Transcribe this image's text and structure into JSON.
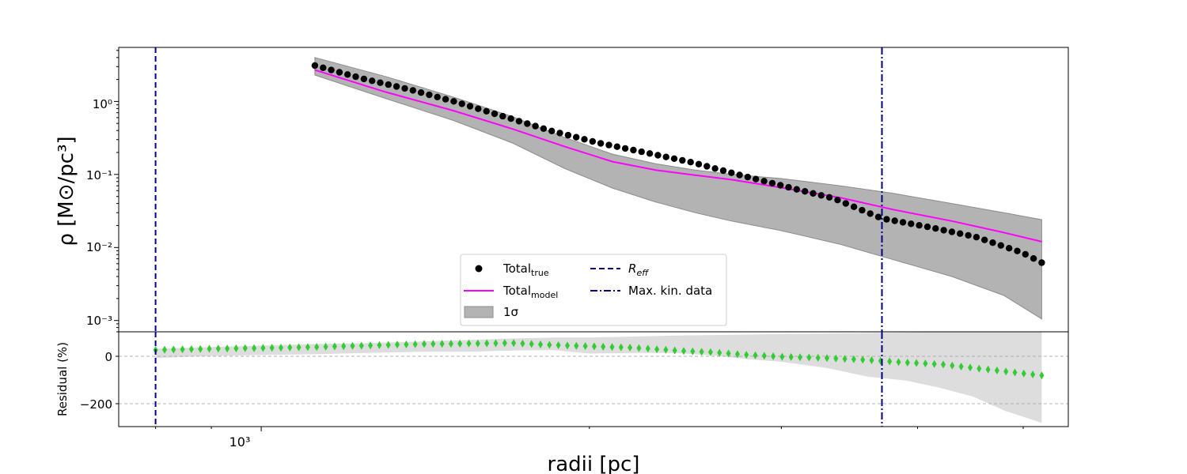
{
  "chart_data": [
    {
      "type": "scatter",
      "panel": "main",
      "xlabel": "radii [pc]",
      "ylabel": "ρ [M⊙/pc³]",
      "x_scale": "log",
      "y_scale": "log",
      "xlim": [
        740,
        5500
      ],
      "ylim": [
        0.0007,
        5.5
      ],
      "x_tick_labels": [
        "10³"
      ],
      "y_tick_labels": [
        "10⁰",
        "10⁻¹",
        "10⁻²",
        "10⁻³"
      ],
      "vlines": [
        {
          "x": 800,
          "style": "dashed",
          "label": "R_eff",
          "color": "#00008b"
        },
        {
          "x": 3710,
          "style": "dashdot",
          "label": "Max. kin. data",
          "color": "#00008b"
        }
      ],
      "series": [
        {
          "name": "Total_true",
          "kind": "points",
          "color": "#000000",
          "x": [
            1120,
            1240,
            1370,
            1510,
            1670,
            1840,
            2040,
            2250,
            2490,
            2750,
            3030,
            3350,
            3710,
            4100,
            4520,
            4990,
            5200
          ],
          "y": [
            3.1,
            2.05,
            1.45,
            0.98,
            0.62,
            0.4,
            0.27,
            0.2,
            0.145,
            0.098,
            0.068,
            0.047,
            0.025,
            0.019,
            0.014,
            0.0085,
            0.0062
          ]
        },
        {
          "name": "Total_model",
          "kind": "line",
          "color": "#ff00ff",
          "x": [
            1120,
            1300,
            1500,
            1700,
            1900,
            2100,
            2300,
            2500,
            2700,
            3000,
            3400,
            3800,
            4300,
            4800,
            5200
          ],
          "y": [
            2.7,
            1.35,
            0.75,
            0.42,
            0.24,
            0.15,
            0.115,
            0.098,
            0.085,
            0.066,
            0.048,
            0.033,
            0.023,
            0.016,
            0.012
          ]
        },
        {
          "name": "1σ",
          "kind": "band",
          "color": "#b3b3b3",
          "x": [
            1120,
            1300,
            1500,
            1700,
            1900,
            2100,
            2300,
            2500,
            2700,
            3000,
            3400,
            3800,
            4300,
            4800,
            5200
          ],
          "y_low": [
            2.3,
            1.1,
            0.55,
            0.27,
            0.12,
            0.065,
            0.042,
            0.03,
            0.023,
            0.017,
            0.011,
            0.0068,
            0.004,
            0.0022,
            0.00105
          ],
          "y_high": [
            4.0,
            2.2,
            1.15,
            0.62,
            0.32,
            0.19,
            0.14,
            0.115,
            0.1,
            0.088,
            0.07,
            0.055,
            0.04,
            0.03,
            0.024
          ]
        }
      ],
      "legend": {
        "placement": "lower-center",
        "entries": [
          {
            "label": "Total",
            "sub": "true",
            "symbol": "dot"
          },
          {
            "label": "Total",
            "sub": "model",
            "symbol": "line"
          },
          {
            "label": "1σ",
            "sub": "",
            "symbol": "patch"
          },
          {
            "label": "R",
            "sub": "eff",
            "symbol": "dashed"
          },
          {
            "label": "Max. kin. data",
            "sub": "",
            "symbol": "dashdot"
          }
        ]
      }
    },
    {
      "type": "scatter",
      "panel": "residual",
      "xlabel": "radii [pc]",
      "ylabel": "Residual (%)",
      "x_scale": "log",
      "xlim": [
        740,
        5500
      ],
      "ylim": [
        -295,
        85
      ],
      "y_ticks": [
        0,
        -200
      ],
      "y_tick_labels": [
        "0",
        "−200"
      ],
      "grid": "dashed horizontal at y ticks",
      "series": [
        {
          "name": "residual",
          "kind": "diamonds",
          "color": "#33cc33",
          "x": [
            800,
            900,
            1000,
            1120,
            1250,
            1400,
            1550,
            1700,
            1850,
            2000,
            2200,
            2400,
            2600,
            2800,
            3000,
            3300,
            3600,
            3900,
            4200,
            4500,
            4800,
            5200
          ],
          "y": [
            12,
            17,
            20,
            24,
            30,
            36,
            38,
            40,
            32,
            27,
            21,
            10,
            3,
            -8,
            -15,
            -20,
            -28,
            -38,
            -45,
            -60,
            -73,
            -90
          ]
        },
        {
          "name": "residual_band",
          "kind": "band",
          "color": "#dddddd",
          "x": [
            800,
            900,
            1000,
            1120,
            1250,
            1400,
            1550,
            1700,
            1850,
            2000,
            2200,
            2400,
            2600,
            2800,
            3000,
            3300,
            3600,
            3900,
            4200,
            4500,
            4800,
            5200
          ],
          "y_low": [
            -20,
            -12,
            -8,
            -5,
            0,
            5,
            5,
            10,
            12,
            -2,
            0,
            0,
            -10,
            -25,
            -35,
            -60,
            -95,
            -110,
            -140,
            -175,
            -230,
            -280
          ],
          "y_high": [
            18,
            24,
            30,
            36,
            40,
            46,
            52,
            58,
            62,
            62,
            66,
            70,
            72,
            74,
            76,
            78,
            80,
            82,
            84,
            86,
            88,
            90
          ]
        }
      ]
    }
  ]
}
